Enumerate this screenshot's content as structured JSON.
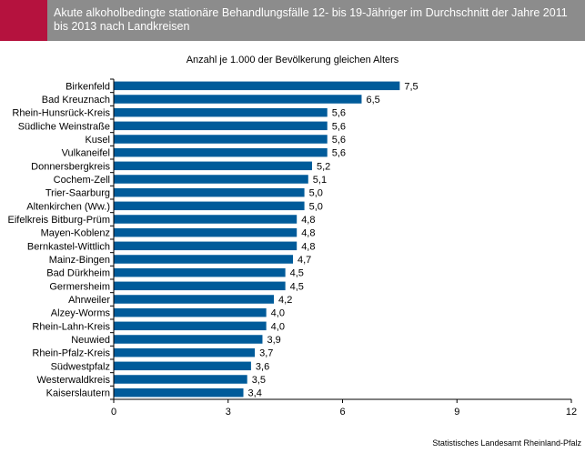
{
  "header": {
    "title": "Akute alkoholbedingte stationäre Behandlungsfälle 12- bis 19-Jähriger im Durchschnitt der Jahre 2011 bis 2013 nach Landkreisen"
  },
  "colors": {
    "bar": "#005b9a",
    "header_accent": "#b5123e",
    "header_bg": "#8c8c8c"
  },
  "chart_data": {
    "type": "bar",
    "orientation": "horizontal",
    "title": "",
    "subtitle": "Anzahl je 1.000 der Bevölkerung gleichen Alters",
    "categories": [
      "Birkenfeld",
      "Bad Kreuznach",
      "Rhein-Hunsrück-Kreis",
      "Südliche Weinstraße",
      "Kusel",
      "Vulkaneifel",
      "Donnersbergkreis",
      "Cochem-Zell",
      "Trier-Saarburg",
      "Altenkirchen (Ww.)",
      "Eifelkreis Bitburg-Prüm",
      "Mayen-Koblenz",
      "Bernkastel-Wittlich",
      "Mainz-Bingen",
      "Bad Dürkheim",
      "Germersheim",
      "Ahrweiler",
      "Alzey-Worms",
      "Rhein-Lahn-Kreis",
      "Neuwied",
      "Rhein-Pfalz-Kreis",
      "Südwestpfalz",
      "Westerwaldkreis",
      "Kaiserslautern"
    ],
    "values": [
      7.5,
      6.5,
      5.6,
      5.6,
      5.6,
      5.6,
      5.2,
      5.1,
      5.0,
      5.0,
      4.8,
      4.8,
      4.8,
      4.7,
      4.5,
      4.5,
      4.2,
      4.0,
      4.0,
      3.9,
      3.7,
      3.6,
      3.5,
      3.4
    ],
    "value_labels": [
      "7,5",
      "6,5",
      "5,6",
      "5,6",
      "5,6",
      "5,6",
      "5,2",
      "5,1",
      "5,0",
      "5,0",
      "4,8",
      "4,8",
      "4,8",
      "4,7",
      "4,5",
      "4,5",
      "4,2",
      "4,0",
      "4,0",
      "3,9",
      "3,7",
      "3,6",
      "3,5",
      "3,4"
    ],
    "xlim": [
      0,
      12
    ],
    "xticks": [
      0,
      3,
      6,
      9,
      12
    ],
    "xtick_labels": [
      "0",
      "3",
      "6",
      "9",
      "12"
    ],
    "grid": false
  },
  "footer": {
    "source": "Statistisches Landesamt Rheinland-Pfalz"
  }
}
